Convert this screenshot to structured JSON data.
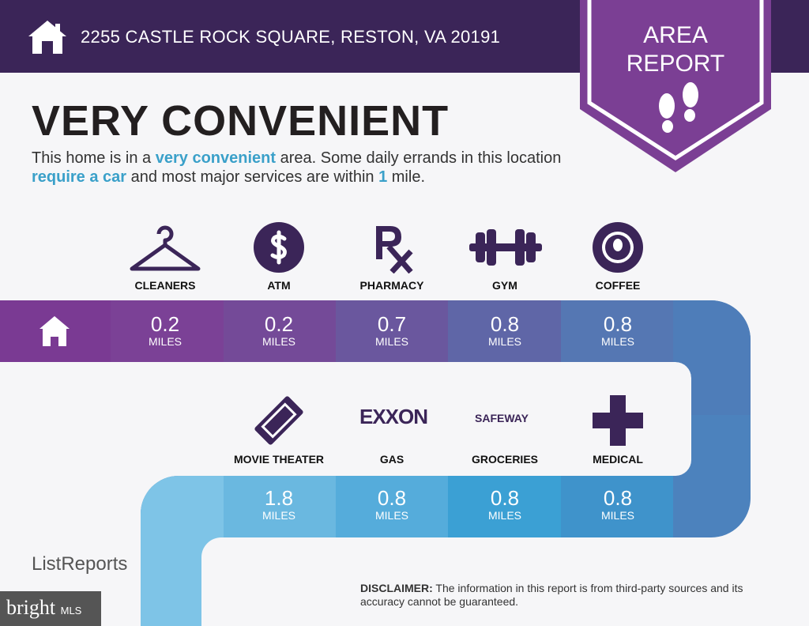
{
  "header": {
    "address": "2255 CASTLE ROCK SQUARE, RESTON, VA 20191",
    "badge_line1": "AREA",
    "badge_line2": "REPORT"
  },
  "headline": "VERY CONVENIENT",
  "description": {
    "p1": "This home is in a ",
    "h1": "very convenient",
    "p2": " area. Some daily errands in this location ",
    "h2": "require a car",
    "p3": " and most major services are within ",
    "h3": "1",
    "p4": " mile."
  },
  "row1": [
    {
      "label": "CLEANERS",
      "value": "0.2",
      "unit": "MILES",
      "icon": "hanger-icon"
    },
    {
      "label": "ATM",
      "value": "0.2",
      "unit": "MILES",
      "icon": "dollar-icon"
    },
    {
      "label": "PHARMACY",
      "value": "0.7",
      "unit": "MILES",
      "icon": "rx-icon"
    },
    {
      "label": "GYM",
      "value": "0.8",
      "unit": "MILES",
      "icon": "dumbbell-icon"
    },
    {
      "label": "COFFEE",
      "value": "0.8",
      "unit": "MILES",
      "icon": "starbucks-logo"
    }
  ],
  "row2": [
    {
      "label": "MOVIE THEATER",
      "value": "1.8",
      "unit": "MILES",
      "icon": "ticket-icon"
    },
    {
      "label": "GAS",
      "value": "0.8",
      "unit": "MILES",
      "icon": "exxon-logo",
      "logo_text": "EXXON"
    },
    {
      "label": "GROCERIES",
      "value": "0.8",
      "unit": "MILES",
      "icon": "safeway-logo",
      "logo_text": "SAFEWAY"
    },
    {
      "label": "MEDICAL",
      "value": "0.8",
      "unit": "MILES",
      "icon": "medical-cross-icon"
    }
  ],
  "footer": {
    "disclaimer_label": "DISCLAIMER:",
    "disclaimer_text": " The information in this report is from third-party sources and its accuracy cannot be guaranteed.",
    "logo": "ListReports",
    "watermark": "bright",
    "watermark_suffix": "MLS"
  },
  "colors": {
    "header": "#3b2558",
    "accent_purple": "#7b3f94",
    "accent_blue": "#3aa0c9"
  }
}
